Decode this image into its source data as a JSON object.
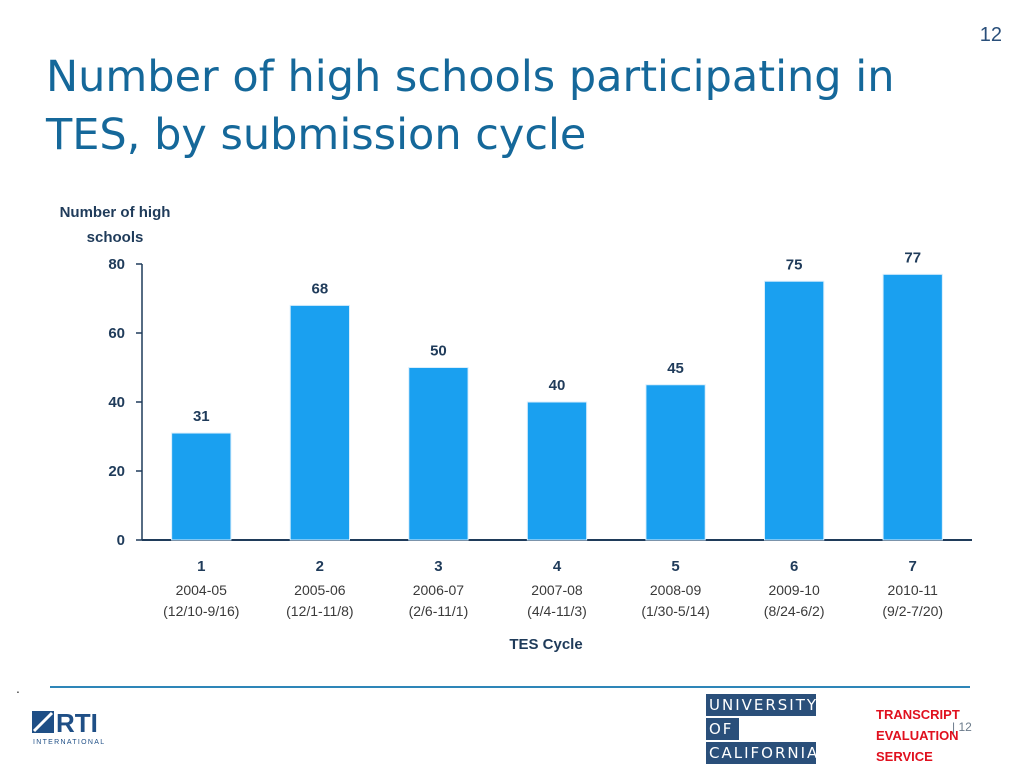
{
  "slide_number": "12",
  "title": "Number of high schools participating in TES, by submission cycle",
  "chart_data": {
    "type": "bar",
    "ylabel_lines": [
      "Number of high",
      "schools"
    ],
    "xlabel": "TES Cycle",
    "ylim": [
      0,
      80
    ],
    "yticks": [
      0,
      20,
      40,
      60,
      80
    ],
    "categories": [
      "1",
      "2",
      "3",
      "4",
      "5",
      "6",
      "7"
    ],
    "category_years": [
      "2004-05",
      "2005-06",
      "2006-07",
      "2007-08",
      "2008-09",
      "2009-10",
      "2010-11"
    ],
    "category_dates": [
      "(12/10-9/16)",
      "(12/1-11/8)",
      "(2/6-11/1)",
      "(4/4-11/3)",
      "(1/30-5/14)",
      "(8/24-6/2)",
      "(9/2-7/20)"
    ],
    "values": [
      31,
      68,
      50,
      40,
      45,
      75,
      77
    ],
    "bar_color": "#1aa0f0",
    "grid": false
  },
  "footer": {
    "dot": ".",
    "rti_logo_text": "RTI",
    "rti_logo_subtext": "INTERNATIONAL",
    "uc_logo_lines": [
      "UNIVERSITY",
      "OF",
      "CALIFORNIA"
    ],
    "tes_logo_lines": [
      "TRANSCRIPT",
      "EVALUATION",
      "SERVICE"
    ],
    "page_marker": "| 12"
  }
}
